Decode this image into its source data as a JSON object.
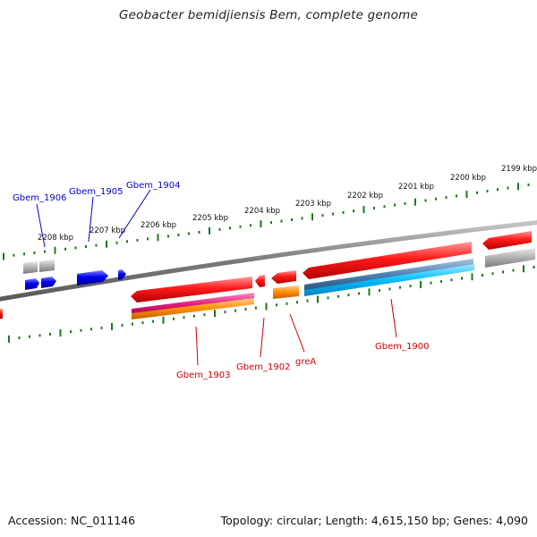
{
  "title": "Geobacter bemidjiensis Bem, complete genome",
  "footer": {
    "accession": "Accession: NC_011146",
    "topology": "Topology: circular; Length: 4,615,150 bp; Genes: 4,090"
  },
  "scale_labels": [
    "2208 kbp",
    "2207 kbp",
    "2206 kbp",
    "2205 kbp",
    "2204 kbp",
    "2203 kbp",
    "2202 kbp",
    "2201 kbp",
    "2200 kbp",
    "2199 kbp"
  ],
  "genes_top": [
    {
      "label": "Gbem_1906",
      "color": "#0000cc"
    },
    {
      "label": "Gbem_1905",
      "color": "#0000cc"
    },
    {
      "label": "Gbem_1904",
      "color": "#0000cc"
    }
  ],
  "genes_bottom": [
    {
      "label": "Gbem_1903",
      "color": "#cc0000"
    },
    {
      "label": "Gbem_1902",
      "color": "#cc0000"
    },
    {
      "label": "greA",
      "color": "#cc0000"
    },
    {
      "label": "Gbem_1900",
      "color": "#cc0000"
    }
  ],
  "colors": {
    "backbone": "#8a8a8a",
    "scale_ticks": "#1a7a1a",
    "forward_gene": "#0000ee",
    "reverse_gene": "#ee0000",
    "pseudo_gray": "#b0b0b0",
    "rna_magenta": "#e0197a",
    "orange": "#ff8c00",
    "cyan": "#00bfff",
    "steel_blue": "#4a7fb0"
  }
}
